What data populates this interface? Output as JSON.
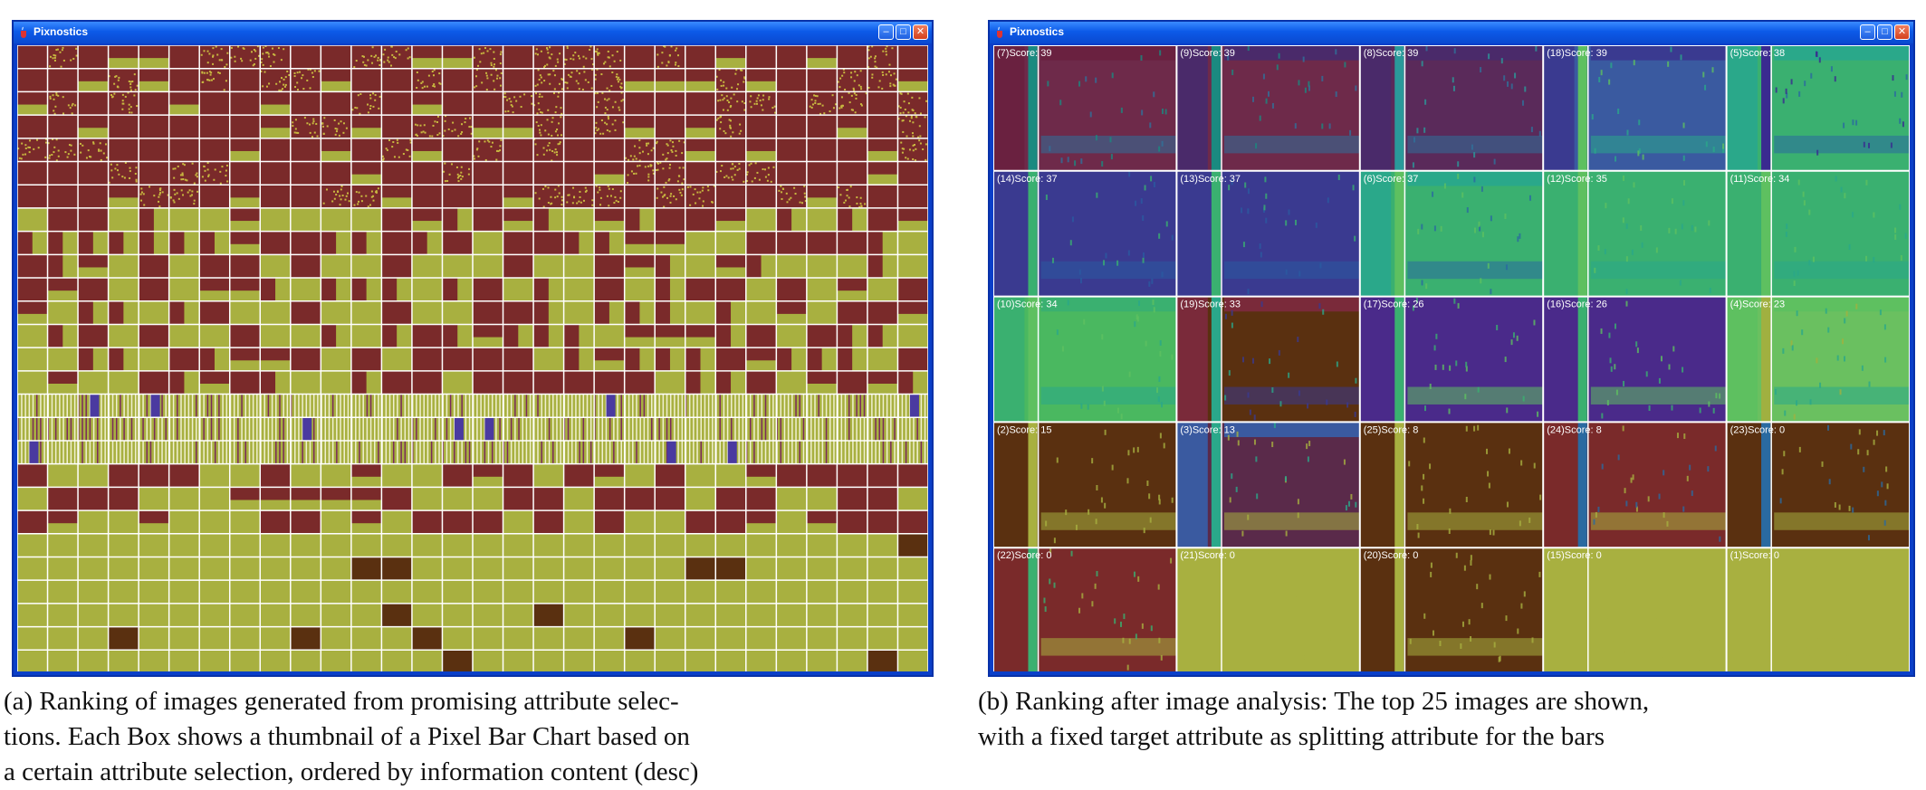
{
  "window_a": {
    "title": "Pixnostics"
  },
  "window_b": {
    "title": "Pixnostics",
    "cells": [
      {
        "label": "(7)Score: 39",
        "pal": [
          "#6e2a4a",
          "#6a2140",
          "#30709a",
          "#1a8a80"
        ]
      },
      {
        "label": "(9)Score: 39",
        "pal": [
          "#6e2a4a",
          "#4a2a6a",
          "#30709a",
          "#1a8a80"
        ]
      },
      {
        "label": "(8)Score: 39",
        "pal": [
          "#5a2a5a",
          "#4a2a6a",
          "#30709a",
          "#2a9a9a"
        ]
      },
      {
        "label": "(18)Score: 39",
        "pal": [
          "#3a5aa0",
          "#3a3a90",
          "#2aa88a",
          "#5ec060"
        ]
      },
      {
        "label": "(5)Score: 38",
        "pal": [
          "#3ab070",
          "#2aa88a",
          "#2a6aa0",
          "#3a2a90"
        ]
      },
      {
        "label": "(14)Score: 37",
        "pal": [
          "#3a3a90",
          "#3a3a90",
          "#2a5aa0",
          "#3ab070"
        ]
      },
      {
        "label": "(13)Score: 37",
        "pal": [
          "#3a3a90",
          "#3a3a90",
          "#2a5aa0",
          "#3ab070"
        ]
      },
      {
        "label": "(6)Score: 37",
        "pal": [
          "#3ab070",
          "#2aa88a",
          "#2a6aa0",
          "#5ec060"
        ]
      },
      {
        "label": "(12)Score: 35",
        "pal": [
          "#3ab070",
          "#3ab070",
          "#2aa88a",
          "#5ec060"
        ]
      },
      {
        "label": "(11)Score: 34",
        "pal": [
          "#3ab070",
          "#3ab070",
          "#2aa88a",
          "#5ec060"
        ]
      },
      {
        "label": "(10)Score: 34",
        "pal": [
          "#4ab860",
          "#3ab070",
          "#2aa88a",
          "#5ec060"
        ]
      },
      {
        "label": "(19)Score: 33",
        "pal": [
          "#5a3010",
          "#7a2a3a",
          "#3a3a90",
          "#2aa88a"
        ]
      },
      {
        "label": "(17)Score: 26",
        "pal": [
          "#4a2a8a",
          "#4a2a8a",
          "#5ec060",
          "#3ab070"
        ]
      },
      {
        "label": "(16)Score: 26",
        "pal": [
          "#4a2a8a",
          "#4a2a8a",
          "#5ec060",
          "#3ab070"
        ]
      },
      {
        "label": "(4)Score: 23",
        "pal": [
          "#6ac060",
          "#5ec060",
          "#2aa88a",
          "#a0b040"
        ]
      },
      {
        "label": "(2)Score: 15",
        "pal": [
          "#5a3010",
          "#5a3010",
          "#a8b040",
          "#a8b040"
        ]
      },
      {
        "label": "(3)Score: 13",
        "pal": [
          "#5a2a4a",
          "#3a5aa0",
          "#a8b040",
          "#2aa88a"
        ]
      },
      {
        "label": "(25)Score: 8",
        "pal": [
          "#5a3010",
          "#5a3010",
          "#a8b040",
          "#a8b040"
        ]
      },
      {
        "label": "(24)Score: 8",
        "pal": [
          "#7a2a2a",
          "#7a2a2a",
          "#a8b040",
          "#2a6aa0"
        ]
      },
      {
        "label": "(23)Score: 0",
        "pal": [
          "#5a3010",
          "#5a3010",
          "#a8b040",
          "#2a6aa0"
        ]
      },
      {
        "label": "(22)Score: 0",
        "pal": [
          "#7a2a2a",
          "#7a2a2a",
          "#a8b040",
          "#3ab070"
        ]
      },
      {
        "label": "(21)Score: 0",
        "pal": [
          "#a8b040",
          "#a8b040",
          "#a8b040",
          "#a8b040"
        ]
      },
      {
        "label": "(20)Score: 0",
        "pal": [
          "#5a3010",
          "#5a3010",
          "#a8b040",
          "#a8b040"
        ]
      },
      {
        "label": "(15)Score: 0",
        "pal": [
          "#a8b040",
          "#a8b040",
          "#a8b040",
          "#a8b040"
        ]
      },
      {
        "label": "(1)Score: 0",
        "pal": [
          "#a8b040",
          "#a8b040",
          "#a8b040",
          "#a8b040"
        ]
      }
    ]
  },
  "captions": {
    "a_line1": "(a) Ranking of images generated from promising attribute selec-",
    "a_line2": "tions. Each Box shows a thumbnail of a Pixel Bar Chart based on",
    "a_line3": "a certain attribute selection, ordered by information content (desc)",
    "b_line1": "(b) Ranking after image analysis: The top 25 images are shown,",
    "b_line2": "with a fixed target attribute as splitting attribute for the bars"
  },
  "colors": {
    "olive": "#a8b040",
    "maroon": "#7a2a2a",
    "brown": "#5a3010",
    "titlebar": "#0c5ae8"
  }
}
